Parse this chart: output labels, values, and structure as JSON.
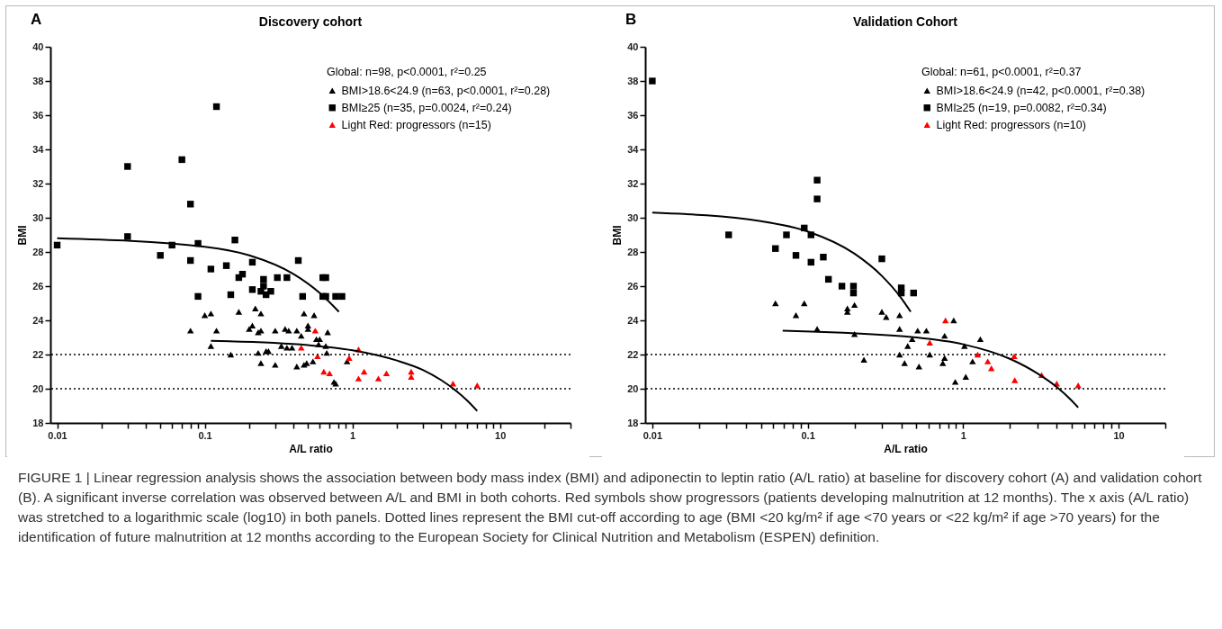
{
  "chart_data": [
    {
      "type": "scatter",
      "title": "Discovery cohort",
      "xlabel": "A/L ratio",
      "ylabel": "BMI",
      "log": "x",
      "grid": false,
      "legend": "top right",
      "legend_title": "Global: n=98, p<0.0001, r²=0.25",
      "annotations": [
        "A",
        "FIGURE 1 | Linear regression analysis shows the association between body mass index (BMI) and adiponectin to leptin ratio (A/L ratio) at baseline for discovery cohort (A) and validation cohort (B). A significant inverse correlation was observed between A/L and BMI in both cohorts. Red symbols show progressors (patients developing malnutrition at 12 months). The x axis (A/L ratio) was stretched to a logarithmic scale (log10) in both panels. Dotted lines represent the BMI cut-off according to age (BMI <20 kg/m² if age <70 years or <22 kg/m² if age >70 years) for the identification of future malnutrition at 12 months according to the European Society for Clinical Nutrition and Metabolism (ESPEN) definition."
      ],
      "xlim": [
        0.009,
        30
      ],
      "ylim": [
        18,
        40
      ],
      "xticks": [
        0.01,
        {
          "value": 0.02,
          "label": null
        },
        {
          "value": 0.03,
          "label": null
        },
        {
          "value": 0.04,
          "label": null
        },
        {
          "value": 0.05,
          "label": null
        },
        {
          "value": 0.06,
          "label": null
        },
        {
          "value": 0.07,
          "label": null
        },
        {
          "value": 0.08,
          "label": null
        },
        {
          "value": 0.09,
          "label": null
        },
        0.1,
        {
          "value": 0.2,
          "label": null
        },
        {
          "value": 0.3,
          "label": null
        },
        {
          "value": 0.4,
          "label": null
        },
        {
          "value": 0.5,
          "label": null
        },
        {
          "value": 0.6,
          "label": null
        },
        {
          "value": 0.7,
          "label": null
        },
        {
          "value": 0.8,
          "label": null
        },
        {
          "value": 0.9,
          "label": null
        },
        1,
        {
          "value": 2,
          "label": null
        },
        {
          "value": 3,
          "label": null
        },
        {
          "value": 4,
          "label": null
        },
        {
          "value": 5,
          "label": null
        },
        {
          "value": 6,
          "label": null
        },
        {
          "value": 7,
          "label": null
        },
        {
          "value": 8,
          "label": null
        },
        {
          "value": 9,
          "label": null
        },
        10,
        {
          "value": 20,
          "label": null
        },
        {
          "value": 30,
          "label": null
        }
      ],
      "yticks": [
        18,
        20,
        22,
        24,
        26,
        28,
        30,
        32,
        34,
        36,
        38,
        40
      ],
      "ref_lines": [
        {
          "axis": "y",
          "value": 22,
          "line_style": "dotted"
        },
        {
          "axis": "y",
          "value": 20,
          "line_style": "dotted"
        }
      ],
      "series": [
        {
          "name": "BMI>18.6<24.9 (n=63, p<0.0001, r²=0.28)",
          "type": "scatter",
          "marker": "triangle",
          "color": "#000000",
          "x": [
            0.08,
            0.1,
            0.11,
            0.11,
            0.12,
            0.15,
            0.17,
            0.2,
            0.21,
            0.22,
            0.24,
            0.23,
            0.24,
            0.23,
            0.26,
            0.27,
            0.24,
            0.3,
            0.3,
            0.33,
            0.35,
            0.36,
            0.37,
            0.39,
            0.42,
            0.42,
            0.45,
            0.47,
            0.5,
            0.5,
            0.55,
            0.57,
            0.6,
            0.59,
            0.66,
            0.68,
            0.67,
            0.47,
            0.49,
            0.54,
            0.75,
            0.77,
            0.92
          ],
          "values": [
            23.4,
            24.3,
            24.4,
            22.5,
            23.4,
            22.0,
            24.5,
            23.5,
            23.7,
            24.7,
            24.4,
            23.3,
            23.4,
            22.1,
            22.2,
            22.2,
            21.5,
            23.4,
            21.4,
            22.5,
            23.5,
            22.4,
            23.4,
            22.4,
            23.4,
            21.3,
            23.1,
            24.4,
            23.7,
            23.5,
            24.3,
            22.9,
            22.9,
            22.6,
            22.5,
            23.3,
            22.1,
            21.4,
            21.5,
            21.6,
            20.4,
            20.3,
            21.6
          ]
        },
        {
          "name": "BMI≥25 (n=35, p=0.0024, r²=0.24)",
          "type": "scatter",
          "marker": "square",
          "color": "#000000",
          "x": [
            0.01,
            0.03,
            0.03,
            0.05,
            0.06,
            0.07,
            0.08,
            0.08,
            0.09,
            0.09,
            0.11,
            0.12,
            0.14,
            0.15,
            0.16,
            0.17,
            0.18,
            0.21,
            0.21,
            0.24,
            0.25,
            0.25,
            0.26,
            0.28,
            0.31,
            0.36,
            0.43,
            0.46,
            0.63,
            0.66,
            0.63,
            0.66,
            0.77,
            0.85
          ],
          "values": [
            28.4,
            33.0,
            28.9,
            27.8,
            28.4,
            33.4,
            30.8,
            27.5,
            28.5,
            25.4,
            27.0,
            36.5,
            27.2,
            25.5,
            28.7,
            26.5,
            26.7,
            27.4,
            25.8,
            25.7,
            26.4,
            26.0,
            25.5,
            25.7,
            26.5,
            26.5,
            27.5,
            25.4,
            26.5,
            26.5,
            25.4,
            25.4,
            25.4,
            25.4
          ]
        },
        {
          "name": "Light Red: progressors (n=15)",
          "type": "scatter",
          "marker": "triangle",
          "color": "#ff0000",
          "x": [
            0.56,
            0.45,
            0.58,
            0.64,
            0.7,
            0.95,
            1.1,
            1.2,
            1.1,
            1.5,
            1.7,
            2.5,
            2.5,
            4.8,
            7.0
          ],
          "values": [
            23.4,
            22.4,
            21.9,
            21.0,
            20.9,
            21.8,
            22.3,
            21.0,
            20.6,
            20.6,
            20.9,
            20.7,
            21.0,
            20.3,
            20.2
          ]
        },
        {
          "type": "line",
          "marker": "none",
          "line_style": "solid",
          "color": "#000000",
          "x": [
            0.01,
            0.1,
            0.2,
            0.4,
            0.6,
            0.81
          ],
          "values": [
            28.8,
            28.3,
            27.8,
            26.7,
            25.6,
            24.5
          ]
        },
        {
          "type": "line",
          "marker": "none",
          "line_style": "solid",
          "color": "#000000",
          "x": [
            0.11,
            0.5,
            1,
            2,
            3,
            4,
            5,
            6,
            7
          ],
          "values": [
            22.8,
            22.55,
            22.25,
            21.65,
            21.1,
            20.5,
            19.9,
            19.3,
            18.7
          ]
        }
      ]
    },
    {
      "type": "scatter",
      "title": "Validation Cohort",
      "xlabel": "A/L ratio",
      "ylabel": "BMI",
      "log": "x",
      "grid": false,
      "legend": "top right",
      "legend_title": "Global: n=61, p<0.0001, r²=0.37",
      "annotations": [
        "B"
      ],
      "xlim": [
        0.009,
        20
      ],
      "ylim": [
        18,
        40
      ],
      "xticks": [
        0.01,
        {
          "value": 0.02,
          "label": null
        },
        {
          "value": 0.03,
          "label": null
        },
        {
          "value": 0.04,
          "label": null
        },
        {
          "value": 0.05,
          "label": null
        },
        {
          "value": 0.06,
          "label": null
        },
        {
          "value": 0.07,
          "label": null
        },
        {
          "value": 0.08,
          "label": null
        },
        {
          "value": 0.09,
          "label": null
        },
        0.1,
        {
          "value": 0.2,
          "label": null
        },
        {
          "value": 0.3,
          "label": null
        },
        {
          "value": 0.4,
          "label": null
        },
        {
          "value": 0.5,
          "label": null
        },
        {
          "value": 0.6,
          "label": null
        },
        {
          "value": 0.7,
          "label": null
        },
        {
          "value": 0.8,
          "label": null
        },
        {
          "value": 0.9,
          "label": null
        },
        1,
        {
          "value": 2,
          "label": null
        },
        {
          "value": 3,
          "label": null
        },
        {
          "value": 4,
          "label": null
        },
        {
          "value": 5,
          "label": null
        },
        {
          "value": 6,
          "label": null
        },
        {
          "value": 7,
          "label": null
        },
        {
          "value": 8,
          "label": null
        },
        {
          "value": 9,
          "label": null
        },
        10,
        {
          "value": 20,
          "label": null
        }
      ],
      "yticks": [
        18,
        20,
        22,
        24,
        26,
        28,
        30,
        32,
        34,
        36,
        38,
        40
      ],
      "ref_lines": [
        {
          "axis": "y",
          "value": 22,
          "line_style": "dotted"
        },
        {
          "axis": "y",
          "value": 20,
          "line_style": "dotted"
        }
      ],
      "series": [
        {
          "name": "BMI>18.6<24.9 (n=42, p<0.0001, r²=0.38)",
          "type": "scatter",
          "marker": "triangle",
          "color": "#000000",
          "x": [
            0.062,
            0.084,
            0.095,
            0.115,
            0.18,
            0.18,
            0.2,
            0.2,
            0.23,
            0.3,
            0.32,
            0.39,
            0.39,
            0.39,
            0.42,
            0.44,
            0.47,
            0.51,
            0.52,
            0.58,
            0.61,
            0.76,
            0.74,
            0.76,
            0.87,
            0.89,
            1.02,
            1.04,
            1.15,
            1.29
          ],
          "values": [
            25.0,
            24.3,
            25.0,
            23.5,
            24.7,
            24.5,
            24.9,
            23.2,
            21.7,
            24.5,
            24.2,
            24.3,
            23.5,
            22.0,
            21.5,
            22.5,
            22.9,
            23.4,
            21.3,
            23.4,
            22.0,
            21.8,
            21.5,
            23.1,
            24.0,
            20.4,
            22.5,
            20.7,
            21.6,
            22.9
          ]
        },
        {
          "name": "BMI≥25 (n=19, p=0.0082, r²=0.34)",
          "type": "scatter",
          "marker": "square",
          "color": "#000000",
          "x": [
            0.01,
            0.031,
            0.062,
            0.073,
            0.084,
            0.095,
            0.105,
            0.105,
            0.115,
            0.115,
            0.126,
            0.136,
            0.166,
            0.197,
            0.197,
            0.3,
            0.4,
            0.4,
            0.48
          ],
          "values": [
            38.0,
            29.0,
            28.2,
            29.0,
            27.8,
            29.4,
            29.0,
            27.4,
            32.2,
            31.1,
            27.7,
            26.4,
            26.0,
            26.0,
            25.6,
            27.6,
            25.9,
            25.6,
            25.6
          ]
        },
        {
          "name": "Light Red: progressors (n=10)",
          "type": "scatter",
          "marker": "triangle",
          "color": "#ff0000",
          "x": [
            0.77,
            0.61,
            1.24,
            1.44,
            1.52,
            2.13,
            2.15,
            3.2,
            4.0,
            5.5
          ],
          "values": [
            24.0,
            22.7,
            22.0,
            21.6,
            21.2,
            21.9,
            20.5,
            20.8,
            20.3,
            20.2
          ]
        },
        {
          "type": "line",
          "marker": "none",
          "line_style": "solid",
          "color": "#000000",
          "x": [
            0.01,
            0.05,
            0.1,
            0.2,
            0.3,
            0.4,
            0.46
          ],
          "values": [
            30.3,
            29.8,
            29.2,
            27.9,
            26.6,
            25.3,
            24.5
          ]
        },
        {
          "type": "line",
          "marker": "none",
          "line_style": "solid",
          "color": "#000000",
          "x": [
            0.069,
            0.5,
            1,
            2,
            3,
            4,
            5,
            5.5
          ],
          "values": [
            23.4,
            23.0,
            22.6,
            21.75,
            20.9,
            20.1,
            19.3,
            18.9
          ]
        }
      ]
    }
  ]
}
